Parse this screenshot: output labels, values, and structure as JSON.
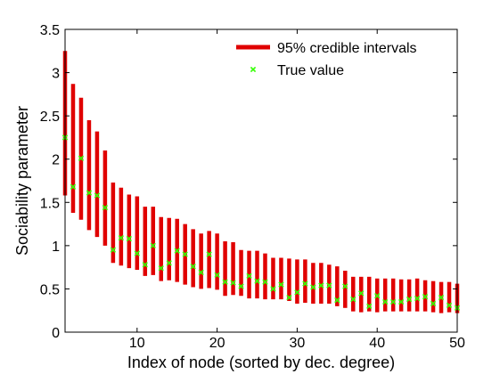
{
  "chart_data": {
    "type": "errorbar",
    "xlabel": "Index of node (sorted by dec. degree)",
    "ylabel": "Sociability parameter",
    "xlim": [
      1,
      50
    ],
    "ylim": [
      0,
      3.5
    ],
    "xticks": [
      10,
      20,
      30,
      40,
      50
    ],
    "yticks": [
      0,
      0.5,
      1,
      1.5,
      2,
      2.5,
      3,
      3.5
    ],
    "grid": false,
    "legend_position": "top-right",
    "colors": {
      "interval": "#e00000",
      "true_value": "#33ff00",
      "axes": "#000000"
    },
    "series": [
      {
        "name": "95% credible intervals",
        "kind": "interval",
        "x": [
          1,
          2,
          3,
          4,
          5,
          6,
          7,
          8,
          9,
          10,
          11,
          12,
          13,
          14,
          15,
          16,
          17,
          18,
          19,
          20,
          21,
          22,
          23,
          24,
          25,
          26,
          27,
          28,
          29,
          30,
          31,
          32,
          33,
          34,
          35,
          36,
          37,
          38,
          39,
          40,
          41,
          42,
          43,
          44,
          45,
          46,
          47,
          48,
          49,
          50
        ],
        "low": [
          1.58,
          1.38,
          1.3,
          1.18,
          1.1,
          1.0,
          0.8,
          0.77,
          0.74,
          0.72,
          0.65,
          0.66,
          0.59,
          0.6,
          0.58,
          0.55,
          0.52,
          0.5,
          0.51,
          0.49,
          0.42,
          0.43,
          0.42,
          0.39,
          0.39,
          0.38,
          0.38,
          0.38,
          0.36,
          0.33,
          0.34,
          0.33,
          0.33,
          0.33,
          0.3,
          0.28,
          0.24,
          0.23,
          0.24,
          0.23,
          0.24,
          0.24,
          0.24,
          0.24,
          0.24,
          0.24,
          0.23,
          0.22,
          0.23,
          0.22
        ],
        "high": [
          3.25,
          2.87,
          2.71,
          2.45,
          2.32,
          2.1,
          1.73,
          1.67,
          1.59,
          1.57,
          1.45,
          1.45,
          1.33,
          1.32,
          1.31,
          1.25,
          1.19,
          1.14,
          1.17,
          1.14,
          1.05,
          1.04,
          0.95,
          0.94,
          0.94,
          0.91,
          0.86,
          0.86,
          0.85,
          0.84,
          0.84,
          0.8,
          0.8,
          0.78,
          0.76,
          0.71,
          0.64,
          0.64,
          0.64,
          0.62,
          0.62,
          0.62,
          0.61,
          0.61,
          0.62,
          0.6,
          0.59,
          0.58,
          0.58,
          0.56
        ]
      },
      {
        "name": "True value",
        "kind": "marker",
        "x": [
          1,
          2,
          3,
          4,
          5,
          6,
          7,
          8,
          9,
          10,
          11,
          12,
          13,
          14,
          15,
          16,
          17,
          18,
          19,
          20,
          21,
          22,
          23,
          24,
          25,
          26,
          27,
          28,
          29,
          30,
          31,
          32,
          33,
          34,
          35,
          36,
          37,
          38,
          39,
          40,
          41,
          42,
          43,
          44,
          45,
          46,
          47,
          48,
          49,
          50
        ],
        "y": [
          2.25,
          1.68,
          2.01,
          1.61,
          1.58,
          1.44,
          0.95,
          1.09,
          1.08,
          0.91,
          0.78,
          1.0,
          0.74,
          0.8,
          0.94,
          0.9,
          0.76,
          0.69,
          0.9,
          0.66,
          0.58,
          0.57,
          0.53,
          0.65,
          0.59,
          0.58,
          0.5,
          0.55,
          0.4,
          0.46,
          0.56,
          0.52,
          0.54,
          0.54,
          0.37,
          0.53,
          0.38,
          0.45,
          0.3,
          0.42,
          0.35,
          0.35,
          0.35,
          0.38,
          0.39,
          0.41,
          0.33,
          0.4,
          0.31,
          0.28
        ]
      }
    ]
  }
}
